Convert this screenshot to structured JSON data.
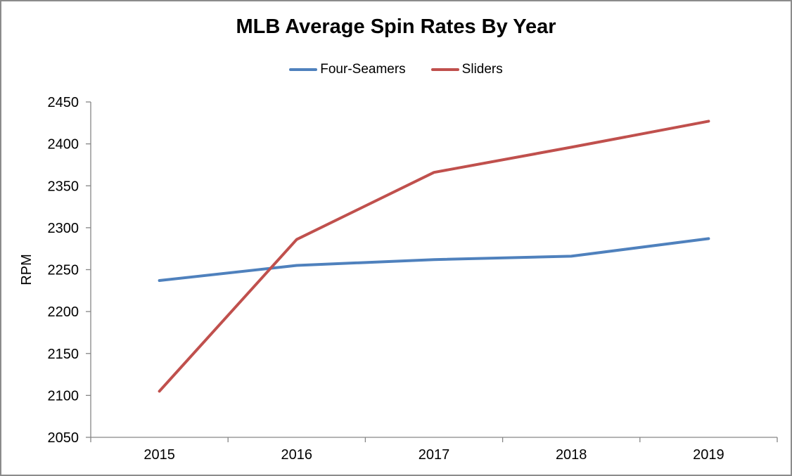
{
  "window": {
    "background": "#ffffff",
    "border_color": "#8b8b8b"
  },
  "chart_data": {
    "type": "line",
    "title": "MLB Average Spin Rates By Year",
    "xlabel": "",
    "ylabel": "RPM",
    "categories": [
      "2015",
      "2016",
      "2017",
      "2018",
      "2019"
    ],
    "series": [
      {
        "name": "Four-Seamers",
        "color": "#4F81BD",
        "values": [
          2237,
          2255,
          2262,
          2266,
          2287
        ]
      },
      {
        "name": "Sliders",
        "color": "#C0504D",
        "values": [
          2105,
          2286,
          2366,
          2396,
          2427
        ]
      }
    ],
    "ylim": [
      2050,
      2450
    ],
    "ytick_step": 50,
    "yticks": [
      2050,
      2100,
      2150,
      2200,
      2250,
      2300,
      2350,
      2400,
      2450
    ],
    "grid": false,
    "legend_position": "top-center",
    "axis_color": "#868686",
    "text_color": "#000000",
    "line_width": 4
  },
  "legend": {
    "items": [
      {
        "label": "Four-Seamers",
        "color": "#4F81BD"
      },
      {
        "label": "Sliders",
        "color": "#C0504D"
      }
    ]
  }
}
